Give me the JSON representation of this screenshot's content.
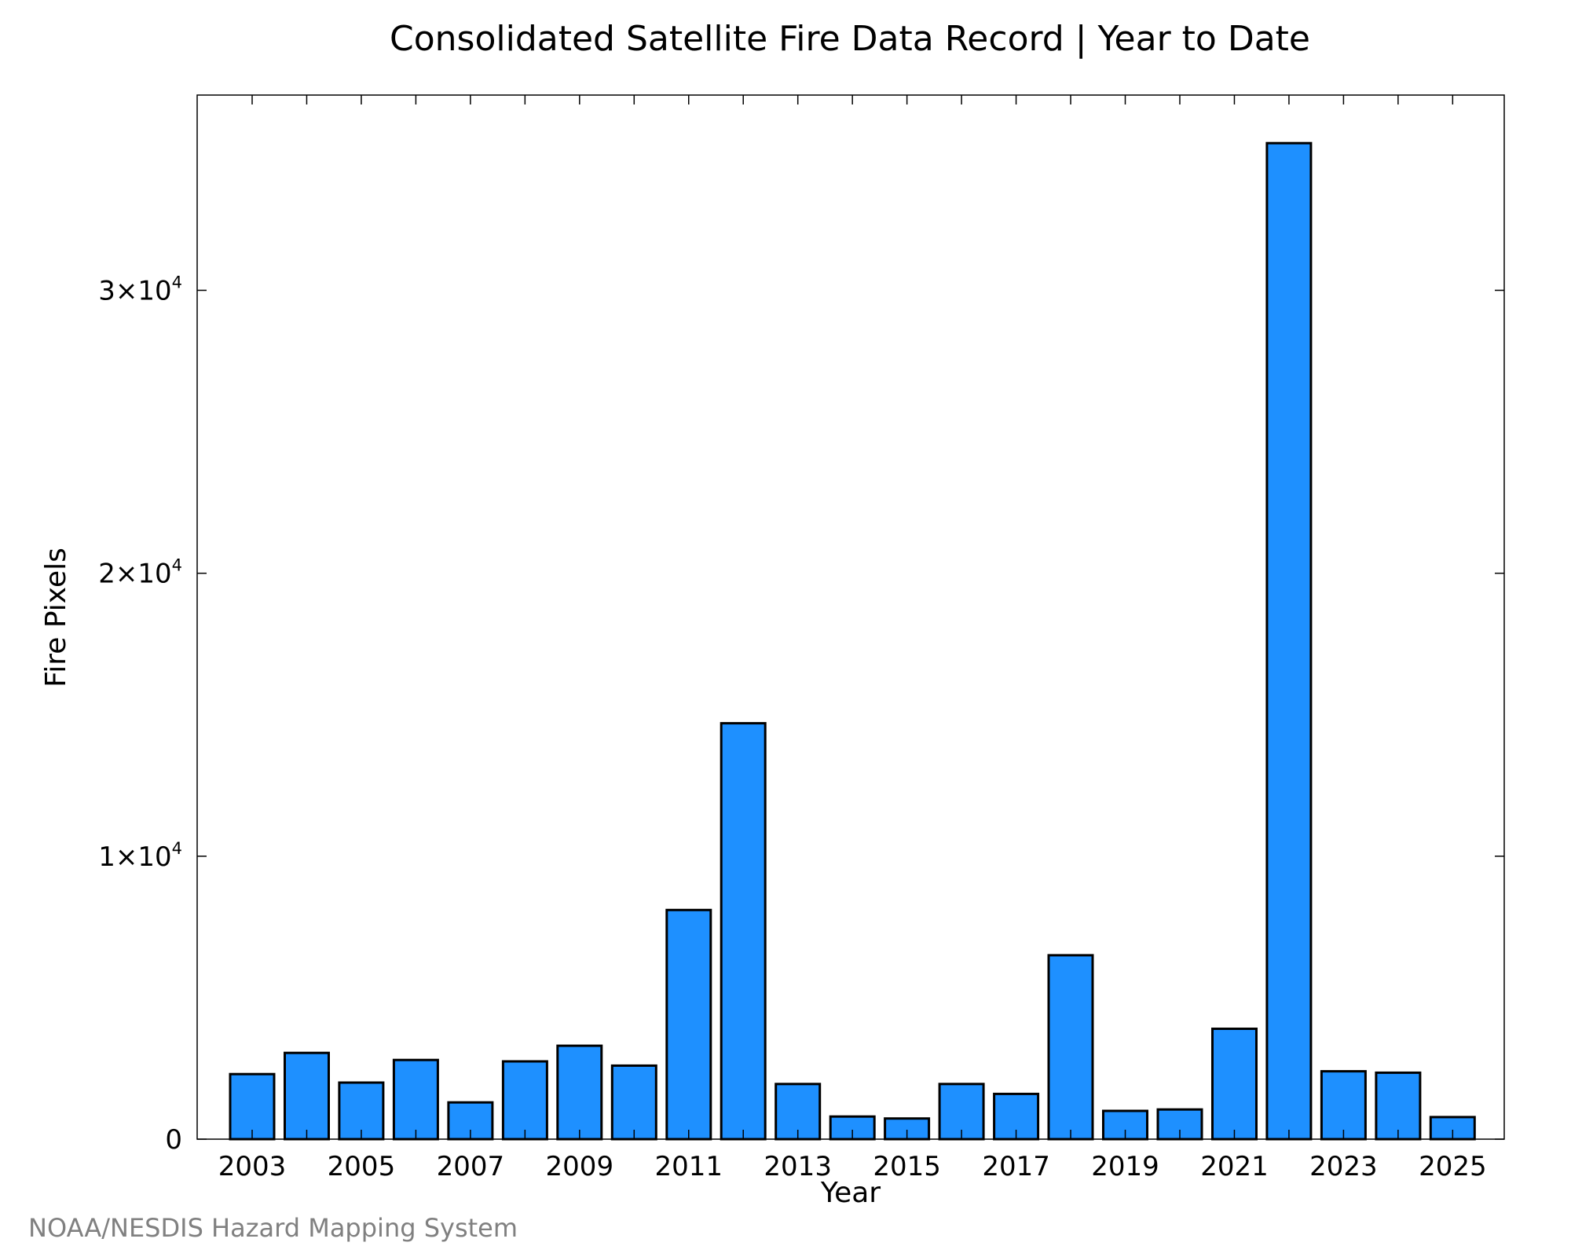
{
  "chart_data": {
    "type": "bar",
    "title": "Consolidated Satellite Fire Data Record | Year to Date",
    "xlabel": "Year",
    "ylabel": "Fire Pixels",
    "categories": [
      "2003",
      "2004",
      "2005",
      "2006",
      "2007",
      "2008",
      "2009",
      "2010",
      "2011",
      "2012",
      "2013",
      "2014",
      "2015",
      "2016",
      "2017",
      "2018",
      "2019",
      "2020",
      "2021",
      "2022",
      "2023",
      "2024",
      "2025"
    ],
    "values": [
      2300,
      3050,
      2000,
      2800,
      1300,
      2750,
      3300,
      2600,
      8100,
      14700,
      1950,
      800,
      730,
      1950,
      1600,
      6500,
      1000,
      1050,
      3900,
      35200,
      2400,
      2350,
      780
    ],
    "ylim": [
      0,
      36900
    ],
    "yticks": [
      {
        "value": 0,
        "mantissa": "0",
        "exp": ""
      },
      {
        "value": 10000,
        "mantissa": "1×10",
        "exp": "4"
      },
      {
        "value": 20000,
        "mantissa": "2×10",
        "exp": "4"
      },
      {
        "value": 30000,
        "mantissa": "3×10",
        "exp": "4"
      }
    ],
    "xtick_labels": [
      "2003",
      "2005",
      "2007",
      "2009",
      "2011",
      "2013",
      "2015",
      "2017",
      "2019",
      "2021",
      "2023",
      "2025"
    ],
    "bar_color": "#1e90ff",
    "bar_edge_color": "#000000",
    "grid": false
  },
  "credit": "NOAA/NESDIS Hazard Mapping System"
}
